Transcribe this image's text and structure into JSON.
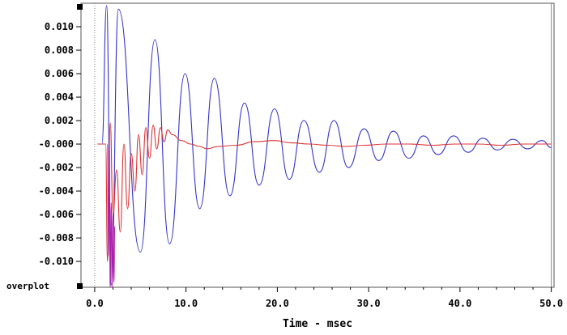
{
  "chart_data": {
    "type": "line",
    "xlabel": "Time - msec",
    "ylabel": "",
    "xlim": [
      -1.5,
      50.3
    ],
    "ylim": [
      -0.0122,
      0.012
    ],
    "x_ticks": [
      0,
      10,
      20,
      30,
      40,
      50
    ],
    "x_tick_labels": [
      "0.0",
      "10.0",
      "20.0",
      "30.0",
      "40.0",
      "50.0"
    ],
    "y_ticks": [
      0.01,
      0.008,
      0.006,
      0.004,
      0.002,
      0.0,
      -0.002,
      -0.004,
      -0.006,
      -0.008,
      -0.01
    ],
    "y_tick_labels": [
      "0.010",
      "0.008",
      "0.006",
      "0.004",
      "0.002",
      "-0.000",
      "-0.002",
      "-0.004",
      "-0.006",
      "-0.008",
      "-0.010"
    ],
    "grid": false,
    "overplot_label": "overplot",
    "series": [
      {
        "color": "#3333cc",
        "peaks": [
          [
            0.3,
            0.0
          ],
          [
            0.8,
            0.0
          ],
          [
            1.3,
            0.0118
          ],
          [
            1.8,
            -0.012
          ],
          [
            2.6,
            0.0115
          ],
          [
            5.0,
            -0.0092
          ],
          [
            6.6,
            0.0089
          ],
          [
            8.2,
            -0.0085
          ],
          [
            9.9,
            0.006
          ],
          [
            11.5,
            -0.0055
          ],
          [
            13.1,
            0.0056
          ],
          [
            14.8,
            -0.0044
          ],
          [
            16.4,
            0.0035
          ],
          [
            18.0,
            -0.0035
          ],
          [
            19.7,
            0.003
          ],
          [
            21.3,
            -0.003
          ],
          [
            22.9,
            0.002
          ],
          [
            24.6,
            -0.0024
          ],
          [
            26.2,
            0.002
          ],
          [
            27.8,
            -0.002
          ],
          [
            29.5,
            0.0013
          ],
          [
            31.1,
            -0.0014
          ],
          [
            32.7,
            0.0011
          ],
          [
            34.4,
            -0.0012
          ],
          [
            36.0,
            0.0007
          ],
          [
            37.6,
            -0.0009
          ],
          [
            39.3,
            0.0007
          ],
          [
            40.9,
            -0.0007
          ],
          [
            42.5,
            0.0005
          ],
          [
            44.1,
            -0.0005
          ],
          [
            45.8,
            0.0004
          ],
          [
            47.4,
            -0.0004
          ],
          [
            49.0,
            0.0003
          ],
          [
            50.0,
            -0.0003
          ]
        ]
      },
      {
        "color": "#dd3333",
        "peaks": [
          [
            0.3,
            0.0
          ],
          [
            1.2,
            0.0
          ],
          [
            1.4,
            -0.01
          ],
          [
            1.7,
            0.0018
          ],
          [
            2.0,
            -0.006
          ],
          [
            2.4,
            -0.0022
          ],
          [
            2.8,
            -0.0075
          ],
          [
            3.2,
            0.0
          ],
          [
            3.6,
            -0.0055
          ],
          [
            4.0,
            -0.0008
          ],
          [
            4.4,
            -0.004
          ],
          [
            4.8,
            0.0008
          ],
          [
            5.2,
            -0.0026
          ],
          [
            5.6,
            0.0014
          ],
          [
            6.0,
            -0.0012
          ],
          [
            6.4,
            0.0016
          ],
          [
            6.8,
            -0.0004
          ],
          [
            7.2,
            0.0014
          ],
          [
            7.6,
            0.0002
          ],
          [
            8.0,
            0.0012
          ],
          [
            8.5,
            0.0008
          ],
          [
            9.5,
            0.0003
          ],
          [
            10.5,
            0.0
          ],
          [
            11.5,
            -0.0002
          ],
          [
            12.3,
            -0.0004
          ],
          [
            13.5,
            -0.0002
          ],
          [
            15.5,
            -0.0001
          ],
          [
            17.5,
            0.0002
          ],
          [
            19.7,
            0.0003
          ],
          [
            21.5,
            0.0001
          ],
          [
            23.5,
            0.0
          ],
          [
            25.5,
            -0.0001
          ],
          [
            27.5,
            -0.0002
          ],
          [
            29.5,
            -0.0001
          ],
          [
            32.0,
            0.0
          ],
          [
            34.5,
            0.0
          ],
          [
            37.0,
            -0.0001
          ],
          [
            39.5,
            0.0
          ],
          [
            42.0,
            0.0
          ],
          [
            44.5,
            -0.0001
          ],
          [
            47.0,
            0.0
          ],
          [
            50.0,
            0.0
          ]
        ]
      },
      {
        "color": "#aa22aa",
        "peaks": [
          [
            1.4,
            0.0
          ],
          [
            1.5,
            -0.0095
          ],
          [
            1.6,
            0.0
          ],
          [
            1.7,
            -0.0122
          ],
          [
            1.8,
            -0.005
          ],
          [
            1.9,
            -0.0122
          ],
          [
            2.0,
            -0.006
          ],
          [
            2.1,
            -0.0118
          ],
          [
            2.2,
            -0.007
          ]
        ]
      }
    ]
  }
}
